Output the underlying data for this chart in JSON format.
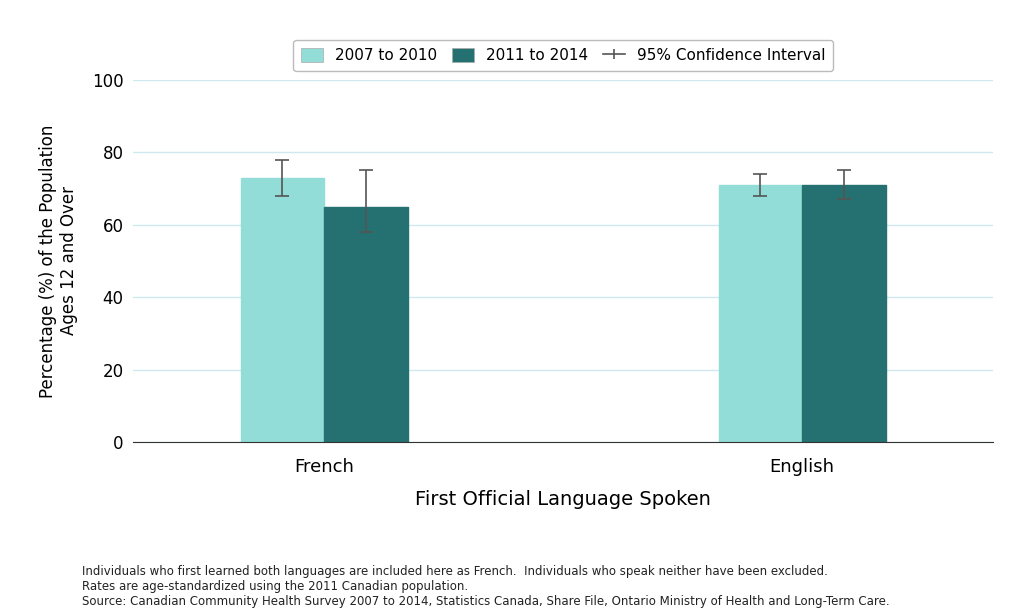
{
  "categories": [
    "French",
    "English"
  ],
  "bar1_values": [
    73.0,
    71.0
  ],
  "bar2_values": [
    65.0,
    71.0
  ],
  "bar1_ci_lower": [
    68.0,
    68.0
  ],
  "bar1_ci_upper": [
    78.0,
    74.0
  ],
  "bar2_ci_lower": [
    58.0,
    67.0
  ],
  "bar2_ci_upper": [
    75.0,
    75.0
  ],
  "bar1_color": "#92DDD8",
  "bar2_color": "#257070",
  "ci_color": "#555555",
  "ylabel": "Percentage (%) of the Population\nAges 12 and Over",
  "xlabel": "First Official Language Spoken",
  "ylim": [
    0,
    100
  ],
  "yticks": [
    0,
    20,
    40,
    60,
    80,
    100
  ],
  "legend_label1": "2007 to 2010",
  "legend_label2": "2011 to 2014",
  "legend_label3": "95% Confidence Interval",
  "footnote1": "Individuals who first learned both languages are included here as French.  Individuals who speak neither have been excluded.",
  "footnote2": "Rates are age-standardized using the 2011 Canadian population.",
  "footnote3": "Source: Canadian Community Health Survey 2007 to 2014, Statistics Canada, Share File, Ontario Ministry of Health and Long-Term Care.",
  "bar_width": 0.35,
  "background_color": "#ffffff",
  "grid_color": "#d0e8ef"
}
